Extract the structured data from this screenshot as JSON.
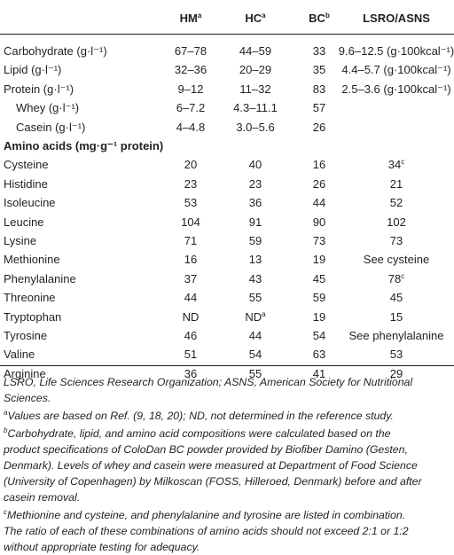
{
  "table": {
    "header": [
      {
        "text": "HM",
        "sup": "a"
      },
      {
        "text": "HC",
        "sup": "a"
      },
      {
        "text": "BC",
        "sup": "b"
      },
      {
        "text": "LSRO/ASNS"
      }
    ],
    "rows": [
      [
        "Carbohydrate (g·l⁻¹)",
        "67–78",
        "44–59",
        "33",
        "9.6–12.5 (g·100kcal⁻¹)"
      ],
      [
        "Lipid (g·l⁻¹)",
        "32–36",
        "20–29",
        "35",
        "4.4–5.7 (g·100kcal⁻¹)"
      ],
      [
        "Protein (g·l⁻¹)",
        "9–12",
        "11–32",
        "83",
        "2.5–3.6 (g·100kcal⁻¹)"
      ],
      [
        "Whey (g·l⁻¹)",
        "6–7.2",
        "4.3–11.1",
        "57"
      ],
      [
        "Casein (g·l⁻¹)",
        "4–4.8",
        "3.0–5.6",
        "26"
      ],
      [
        "Amino acids (mg·g⁻¹ protein)"
      ],
      [
        "Cysteine",
        "20",
        "40",
        "16",
        {
          "text": "34",
          "sup": "c"
        }
      ],
      [
        "Histidine",
        "23",
        "23",
        "26",
        "21"
      ],
      [
        "Isoleucine",
        "53",
        "36",
        "44",
        "52"
      ],
      [
        "Leucine",
        "104",
        "91",
        "90",
        "102"
      ],
      [
        "Lysine",
        "71",
        "59",
        "73",
        "73"
      ],
      [
        "Methionine",
        "16",
        "13",
        "19",
        "See cysteine"
      ],
      [
        "Phenylalanine",
        "37",
        "43",
        "45",
        {
          "text": "78",
          "sup": "c"
        }
      ],
      [
        "Threonine",
        "44",
        "55",
        "59",
        "45"
      ],
      [
        "Tryptophan",
        "ND",
        {
          "text": "ND",
          "sup": "a"
        },
        "19",
        "15"
      ],
      [
        "Tyrosine",
        "46",
        "44",
        "54",
        "See phenylalanine"
      ],
      [
        "Valine",
        "51",
        "54",
        "63",
        "53"
      ],
      [
        "Arginine",
        "36",
        "55",
        "41",
        "29"
      ]
    ]
  },
  "footnotes": [
    {
      "lines": [
        "LSRO, Life Sciences Research Organization; ASNS, American Society for Nutritional",
        "Sciences."
      ]
    },
    {
      "sup": "a",
      "lines": [
        "Values are based on Ref. (9, 18, 20); ND, not determined in the reference study."
      ]
    },
    {
      "sup": "b",
      "lines": [
        "Carbohydrate, lipid, and amino acid compositions were calculated based on the",
        "product specifications of ColoDan BC powder provided by Biofiber Damino (Gesten,",
        "Denmark). Levels of whey and casein were measured at Department of Food Science",
        "(University of Copenhagen) by Milkoscan (FOSS, Hilleroed, Denmark) before and after",
        "casein removal."
      ]
    },
    {
      "sup": "c",
      "lines": [
        "Methionine and cysteine, and phenylalanine and tyrosine are listed in combination.",
        "The ratio of each of these combinations of amino acids should not exceed 2:1 or 1:2",
        "without appropriate testing for adequacy."
      ]
    }
  ]
}
